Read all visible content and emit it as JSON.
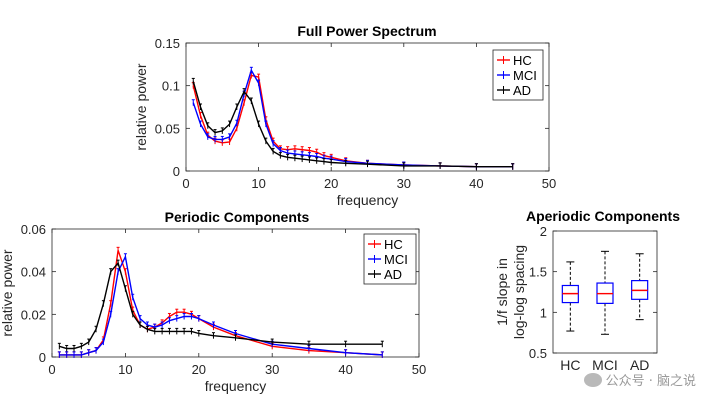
{
  "chart_data": [
    {
      "id": "full",
      "type": "line",
      "title": "Full Power Spectrum",
      "xlabel": "frequency",
      "ylabel": "relative power",
      "xlim": [
        0,
        50
      ],
      "ylim": [
        0,
        0.15
      ],
      "xticks": [
        0,
        10,
        20,
        30,
        40,
        50
      ],
      "yticks": [
        0,
        0.05,
        0.1,
        0.15
      ],
      "xtick_labels": [
        "0",
        "10",
        "20",
        "30",
        "40",
        "50"
      ],
      "ytick_labels": [
        "0",
        "0.05",
        "0.1",
        "0.15"
      ],
      "legend_position": "top-right",
      "series": [
        {
          "name": "HC",
          "color": "#ff0000",
          "x": [
            1,
            2,
            3,
            4,
            5,
            6,
            7,
            8,
            9,
            10,
            11,
            12,
            13,
            14,
            15,
            16,
            17,
            18,
            19,
            20,
            22,
            25,
            30,
            35,
            40,
            45
          ],
          "y": [
            0.1,
            0.065,
            0.042,
            0.035,
            0.033,
            0.034,
            0.05,
            0.08,
            0.112,
            0.11,
            0.06,
            0.035,
            0.026,
            0.025,
            0.026,
            0.025,
            0.024,
            0.022,
            0.018,
            0.016,
            0.012,
            0.009,
            0.007,
            0.006,
            0.005,
            0.005
          ]
        },
        {
          "name": "MCI",
          "color": "#0000ff",
          "x": [
            1,
            2,
            3,
            4,
            5,
            6,
            7,
            8,
            9,
            10,
            11,
            12,
            13,
            14,
            15,
            16,
            17,
            18,
            19,
            20,
            22,
            25,
            30,
            35,
            40,
            45
          ],
          "y": [
            0.08,
            0.055,
            0.04,
            0.037,
            0.037,
            0.04,
            0.056,
            0.09,
            0.118,
            0.103,
            0.055,
            0.032,
            0.024,
            0.021,
            0.02,
            0.019,
            0.018,
            0.017,
            0.015,
            0.014,
            0.011,
            0.009,
            0.007,
            0.006,
            0.005,
            0.005
          ]
        },
        {
          "name": "AD",
          "color": "#000000",
          "x": [
            1,
            2,
            3,
            4,
            5,
            6,
            7,
            8,
            9,
            10,
            11,
            12,
            13,
            14,
            15,
            16,
            17,
            18,
            19,
            20,
            22,
            25,
            30,
            35,
            40,
            45
          ],
          "y": [
            0.105,
            0.075,
            0.053,
            0.045,
            0.047,
            0.055,
            0.075,
            0.093,
            0.082,
            0.055,
            0.035,
            0.023,
            0.018,
            0.016,
            0.015,
            0.014,
            0.013,
            0.012,
            0.011,
            0.01,
            0.009,
            0.008,
            0.006,
            0.006,
            0.005,
            0.005
          ]
        }
      ]
    },
    {
      "id": "periodic",
      "type": "line",
      "title": "Periodic Components",
      "xlabel": "frequency",
      "ylabel": "relative power",
      "xlim": [
        0,
        50
      ],
      "ylim": [
        0,
        0.06
      ],
      "xticks": [
        0,
        10,
        20,
        30,
        40,
        50
      ],
      "yticks": [
        0,
        0.02,
        0.04,
        0.06
      ],
      "xtick_labels": [
        "0",
        "10",
        "20",
        "30",
        "40",
        "50"
      ],
      "ytick_labels": [
        "0",
        "0.02",
        "0.04",
        "0.06"
      ],
      "legend_position": "top-right",
      "series": [
        {
          "name": "HC",
          "color": "#ff0000",
          "x": [
            1,
            2,
            3,
            4,
            5,
            6,
            7,
            8,
            9,
            10,
            11,
            12,
            13,
            14,
            15,
            16,
            17,
            18,
            19,
            20,
            22,
            25,
            30,
            35,
            40,
            45
          ],
          "y": [
            0.001,
            0.001,
            0.001,
            0.001,
            0.002,
            0.003,
            0.008,
            0.025,
            0.05,
            0.04,
            0.022,
            0.015,
            0.013,
            0.014,
            0.016,
            0.019,
            0.021,
            0.021,
            0.02,
            0.018,
            0.014,
            0.01,
            0.005,
            0.003,
            0.002,
            0.001
          ]
        },
        {
          "name": "MCI",
          "color": "#0000ff",
          "x": [
            1,
            2,
            3,
            4,
            5,
            6,
            7,
            8,
            9,
            10,
            11,
            12,
            13,
            14,
            15,
            16,
            17,
            18,
            19,
            20,
            22,
            25,
            30,
            35,
            40,
            45
          ],
          "y": [
            0.001,
            0.001,
            0.001,
            0.001,
            0.002,
            0.003,
            0.007,
            0.02,
            0.04,
            0.047,
            0.028,
            0.018,
            0.015,
            0.014,
            0.015,
            0.017,
            0.018,
            0.019,
            0.019,
            0.018,
            0.015,
            0.011,
            0.006,
            0.004,
            0.002,
            0.001
          ]
        },
        {
          "name": "AD",
          "color": "#000000",
          "x": [
            1,
            2,
            3,
            4,
            5,
            6,
            7,
            8,
            9,
            10,
            11,
            12,
            13,
            14,
            15,
            16,
            17,
            18,
            19,
            20,
            22,
            25,
            30,
            35,
            40,
            45
          ],
          "y": [
            0.005,
            0.004,
            0.004,
            0.005,
            0.007,
            0.013,
            0.025,
            0.04,
            0.044,
            0.032,
            0.02,
            0.015,
            0.013,
            0.012,
            0.012,
            0.012,
            0.012,
            0.012,
            0.012,
            0.011,
            0.01,
            0.009,
            0.007,
            0.006,
            0.006,
            0.006
          ]
        }
      ]
    },
    {
      "id": "aperiodic",
      "type": "box",
      "title": "Aperiodic Components",
      "ylabel_lines": [
        "1/f slope in",
        "log-log spacing"
      ],
      "ylim": [
        0.5,
        2
      ],
      "yticks": [
        0.5,
        1,
        1.5,
        2
      ],
      "ytick_labels": [
        "0.5",
        "1",
        "1.5",
        "2"
      ],
      "categories": [
        "HC",
        "MCI",
        "AD"
      ],
      "boxes": [
        {
          "name": "HC",
          "whisker_low": 0.77,
          "q1": 1.12,
          "median": 1.23,
          "q3": 1.33,
          "whisker_high": 1.62
        },
        {
          "name": "MCI",
          "whisker_low": 0.73,
          "q1": 1.11,
          "median": 1.23,
          "q3": 1.36,
          "whisker_high": 1.75
        },
        {
          "name": "AD",
          "whisker_low": 0.91,
          "q1": 1.16,
          "median": 1.27,
          "q3": 1.39,
          "whisker_high": 1.72
        }
      ],
      "box_color": "#0000ff",
      "median_color": "#ff0000",
      "whisker_color": "#000000"
    }
  ],
  "watermark": {
    "text": "公众号 · 脑之说",
    "icon": "wechat-icon"
  }
}
